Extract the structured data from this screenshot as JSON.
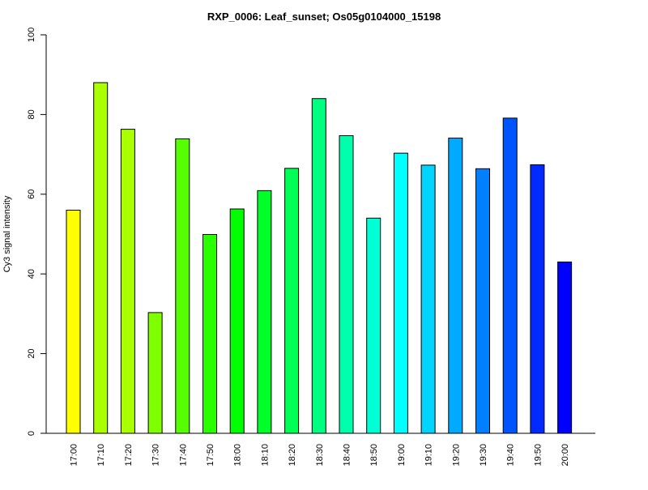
{
  "chart_data": {
    "type": "bar",
    "title": "RXP_0006: Leaf_sunset; Os05g0104000_15198",
    "xlabel": "",
    "ylabel": "Cy3 signal intensity",
    "ylim": [
      0,
      100
    ],
    "yticks": [
      "0",
      "20",
      "40",
      "60",
      "80",
      "100"
    ],
    "grid": false,
    "categories": [
      "17:00",
      "17:10",
      "17:20",
      "17:30",
      "17:40",
      "17:50",
      "18:00",
      "18:10",
      "18:20",
      "18:30",
      "18:40",
      "18:50",
      "19:00",
      "19:10",
      "19:20",
      "19:30",
      "19:40",
      "19:50",
      "20:00"
    ],
    "values": [
      56,
      88,
      76.3,
      30.3,
      73.9,
      49.9,
      56.3,
      60.9,
      66.5,
      84,
      74.7,
      54,
      70.3,
      67.3,
      74.1,
      66.4,
      79.1,
      67.4,
      43
    ],
    "colors": [
      "#ffff00",
      "#aaff00",
      "#aaff00",
      "#7fff00",
      "#55ff00",
      "#2aff00",
      "#00ff00",
      "#00ff2a",
      "#00ff55",
      "#00ff80",
      "#00ffaa",
      "#00ffd4",
      "#00ffff",
      "#00d4ff",
      "#00aaff",
      "#0080ff",
      "#0055ff",
      "#002aff",
      "#0000ff"
    ]
  }
}
